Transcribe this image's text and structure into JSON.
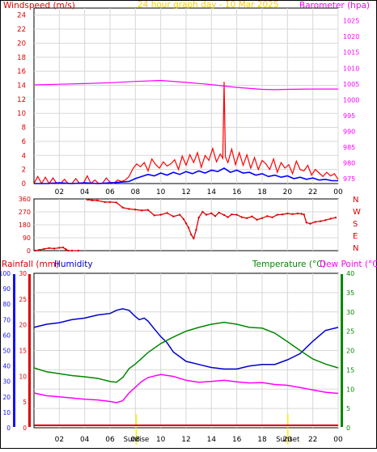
{
  "colors": {
    "red": "#dd0000",
    "wind_gust": "#ff0000",
    "wind_avg": "#0000ff",
    "barometer": "#ff00ff",
    "title": "#ffcc00",
    "humidity": "#0000cc",
    "temperature": "#008800",
    "dewpoint": "#ff00ff",
    "grid": "#d8d8d8",
    "frame": "#000000",
    "sun_marker": "#ffee00"
  },
  "chart_data": [
    {
      "id": "wind_baro",
      "type": "line",
      "title": "24 hour graph day - 10 Mar 2025",
      "left_label": "Windspeed (m/s)",
      "right_label": "Barometer (hpa)",
      "x_ticks": [
        "02",
        "04",
        "06",
        "08",
        "10",
        "12",
        "14",
        "16",
        "18",
        "20",
        "22",
        "00"
      ],
      "xlim": [
        0,
        24
      ],
      "ylim_left": [
        0,
        25
      ],
      "y_ticks_left": [
        0,
        2,
        4,
        6,
        8,
        10,
        12,
        14,
        16,
        18,
        20,
        22,
        24
      ],
      "ylim_right": [
        973.5,
        1029
      ],
      "y_ticks_right": [
        975,
        980,
        985,
        990,
        995,
        1000,
        1005,
        1010,
        1015,
        1020,
        1025
      ],
      "series": [
        {
          "key": "gust",
          "axis": "left",
          "x": [
            0,
            0.3,
            0.6,
            0.9,
            1.2,
            1.5,
            1.8,
            2.1,
            2.4,
            2.7,
            3.0,
            3.3,
            3.6,
            3.9,
            4.2,
            4.5,
            4.8,
            5.1,
            5.4,
            5.7,
            6.0,
            6.3,
            6.6,
            6.9,
            7.2,
            7.5,
            7.8,
            8.1,
            8.4,
            8.7,
            9.0,
            9.3,
            9.6,
            9.9,
            10.2,
            10.5,
            10.8,
            11.1,
            11.4,
            11.7,
            12.0,
            12.3,
            12.6,
            12.9,
            13.2,
            13.5,
            13.8,
            14.1,
            14.4,
            14.7,
            14.9,
            15.0,
            15.1,
            15.3,
            15.6,
            15.9,
            16.2,
            16.5,
            16.8,
            17.1,
            17.4,
            17.7,
            18.0,
            18.3,
            18.6,
            18.9,
            19.2,
            19.5,
            19.8,
            20.1,
            20.4,
            20.7,
            21.0,
            21.3,
            21.6,
            21.9,
            22.2,
            22.5,
            22.8,
            23.1,
            23.4,
            23.7,
            24.0
          ],
          "y": [
            0,
            1.0,
            0,
            0.9,
            0,
            0.8,
            0,
            0,
            0.6,
            0,
            0,
            0.7,
            0,
            0,
            1.1,
            0,
            0.5,
            0,
            0,
            0.8,
            0.2,
            0,
            0.5,
            0.3,
            0.5,
            1.0,
            2.1,
            2.8,
            2.4,
            3.0,
            1.8,
            3.5,
            2.7,
            2.2,
            3.1,
            2.5,
            2.8,
            3.4,
            2.0,
            3.9,
            2.6,
            4.1,
            3.0,
            4.4,
            2.3,
            4.0,
            3.3,
            5.0,
            3.1,
            4.2,
            3.6,
            14.5,
            3.8,
            3.0,
            4.9,
            2.7,
            4.4,
            2.6,
            4.1,
            2.2,
            3.7,
            2.0,
            3.3,
            2.8,
            2.0,
            3.5,
            1.6,
            3.0,
            2.2,
            2.7,
            1.4,
            3.2,
            2.0,
            1.8,
            2.6,
            1.2,
            2.0,
            1.5,
            1.0,
            1.6,
            1.1,
            1.4,
            0.6
          ]
        },
        {
          "key": "avg",
          "axis": "left",
          "x": [
            0,
            1,
            2,
            3,
            4,
            5,
            6,
            6.8,
            7.5,
            8.0,
            8.5,
            9.0,
            9.5,
            10.0,
            10.5,
            11.0,
            11.5,
            12.0,
            12.5,
            13.0,
            13.5,
            14.0,
            14.5,
            15.0,
            15.5,
            16.0,
            16.5,
            17.0,
            17.5,
            18.0,
            18.5,
            19.0,
            19.5,
            20.0,
            20.5,
            21.0,
            21.5,
            22.0,
            22.5,
            23.0,
            23.5,
            24.0
          ],
          "y": [
            0,
            0,
            0.1,
            0,
            0.1,
            0,
            0.1,
            0.2,
            0.3,
            0.7,
            1.0,
            1.3,
            1.1,
            1.5,
            1.2,
            1.6,
            1.3,
            1.7,
            1.4,
            1.8,
            1.5,
            1.9,
            1.7,
            2.2,
            1.6,
            1.9,
            1.5,
            1.6,
            1.2,
            1.4,
            1.0,
            1.2,
            0.9,
            1.1,
            0.7,
            0.9,
            0.6,
            0.8,
            0.5,
            0.6,
            0.4,
            0.4
          ]
        },
        {
          "key": "baro",
          "axis": "right",
          "x": [
            0,
            2,
            4,
            6,
            8,
            10,
            12,
            14,
            16,
            18,
            19,
            20,
            22,
            24
          ],
          "y": [
            1004.7,
            1004.9,
            1005.1,
            1005.4,
            1005.8,
            1006.1,
            1005.5,
            1004.8,
            1003.9,
            1003.3,
            1003.2,
            1003.3,
            1003.4,
            1003.4
          ]
        }
      ]
    },
    {
      "id": "wind_dir",
      "type": "scatter",
      "dir_labels": [
        "N",
        "W",
        "S",
        "E",
        "N"
      ],
      "ylim": [
        0,
        360
      ],
      "y_ticks": [
        0,
        90,
        180,
        270,
        360
      ],
      "points": [
        [
          0.1,
          0
        ],
        [
          0.4,
          5
        ],
        [
          0.8,
          12
        ],
        [
          1.2,
          18
        ],
        [
          1.6,
          14
        ],
        [
          2.0,
          20
        ],
        [
          2.3,
          22
        ],
        [
          2.5,
          10
        ],
        [
          2.7,
          0
        ],
        [
          3.0,
          0
        ],
        [
          3.5,
          0
        ],
        [
          4.2,
          355
        ],
        [
          4.6,
          350
        ],
        [
          5.0,
          349
        ],
        [
          5.6,
          338
        ],
        [
          6.0,
          338
        ],
        [
          6.5,
          335
        ],
        [
          7.0,
          300
        ],
        [
          7.5,
          290
        ],
        [
          8.0,
          286
        ],
        [
          8.5,
          280
        ],
        [
          9.0,
          283
        ],
        [
          9.5,
          245
        ],
        [
          10.0,
          250
        ],
        [
          10.5,
          262
        ],
        [
          11.0,
          238
        ],
        [
          11.5,
          250
        ],
        [
          11.8,
          220
        ],
        [
          12.0,
          190
        ],
        [
          12.2,
          160
        ],
        [
          12.4,
          112
        ],
        [
          12.6,
          85
        ],
        [
          12.8,
          145
        ],
        [
          13.0,
          230
        ],
        [
          13.3,
          270
        ],
        [
          13.6,
          250
        ],
        [
          14.0,
          260
        ],
        [
          14.3,
          240
        ],
        [
          14.6,
          265
        ],
        [
          15.0,
          248
        ],
        [
          15.3,
          233
        ],
        [
          15.6,
          252
        ],
        [
          16.0,
          250
        ],
        [
          16.4,
          233
        ],
        [
          16.8,
          226
        ],
        [
          17.2,
          238
        ],
        [
          17.6,
          215
        ],
        [
          18.0,
          226
        ],
        [
          18.4,
          240
        ],
        [
          18.8,
          232
        ],
        [
          19.2,
          250
        ],
        [
          19.6,
          252
        ],
        [
          20.0,
          258
        ],
        [
          20.4,
          254
        ],
        [
          20.8,
          258
        ],
        [
          21.1,
          256
        ],
        [
          21.3,
          252
        ],
        [
          21.5,
          195
        ],
        [
          21.8,
          188
        ],
        [
          22.2,
          200
        ],
        [
          22.6,
          205
        ],
        [
          23.0,
          212
        ],
        [
          23.4,
          222
        ],
        [
          23.8,
          230
        ]
      ]
    },
    {
      "id": "rain_temp",
      "type": "line",
      "left_label_rain": "Rainfall (mm)",
      "left_label_hum": "Humidity",
      "right_label_temp": "Temperature (°C)",
      "right_label_dew": "Dew Point (°C)",
      "x_ticks": [
        "02",
        "04",
        "06",
        "08",
        "10",
        "12",
        "14",
        "16",
        "18",
        "20",
        "22",
        "00"
      ],
      "sun_labels": [
        "Sunrise",
        "Sunset"
      ],
      "sun_times": [
        8.07,
        20.03
      ],
      "xlim": [
        0,
        24
      ],
      "hum_ticks": [
        0,
        10,
        20,
        30,
        40,
        50,
        60,
        70,
        80,
        90,
        100
      ],
      "rain_ticks": [
        0,
        5,
        10,
        15,
        20,
        25,
        30
      ],
      "temp_ticks": [
        0,
        5,
        10,
        15,
        20,
        25,
        30,
        35,
        40
      ],
      "ylim_temp": [
        0,
        40
      ],
      "series": [
        {
          "key": "humidity",
          "x": [
            0,
            1,
            2,
            3,
            4,
            5,
            6,
            6.5,
            7.0,
            7.5,
            8.0,
            8.3,
            8.7,
            9.0,
            9.5,
            10.0,
            10.5,
            11.0,
            11.5,
            12.0,
            13.0,
            14.0,
            15.0,
            16.0,
            17.0,
            18.0,
            19.0,
            20.0,
            21.0,
            22.0,
            23.0,
            24.0
          ],
          "y": [
            65,
            67,
            68,
            70,
            71,
            73,
            74,
            76,
            77,
            76,
            72,
            70,
            71,
            69,
            64,
            59,
            55,
            49,
            46,
            43,
            41,
            39,
            38,
            38,
            40,
            41,
            41,
            44,
            48,
            56,
            63,
            65
          ]
        },
        {
          "key": "temperature",
          "x": [
            0,
            1,
            2,
            3,
            4,
            5,
            6,
            6.5,
            7.0,
            7.5,
            8.0,
            8.5,
            9.0,
            10.0,
            11.0,
            12.0,
            13.0,
            14.0,
            15.0,
            16.0,
            17.0,
            18.0,
            19.0,
            20.0,
            21.0,
            22.0,
            23.0,
            24.0
          ],
          "y": [
            15.5,
            14.5,
            14.0,
            13.5,
            13.2,
            12.8,
            12.0,
            11.8,
            13.0,
            15.3,
            16.5,
            18.0,
            19.5,
            21.8,
            23.5,
            25.0,
            26.0,
            26.8,
            27.3,
            26.8,
            26.0,
            25.8,
            24.5,
            22.3,
            20.0,
            17.8,
            16.5,
            15.5
          ]
        },
        {
          "key": "dewpoint",
          "x": [
            0,
            1,
            2,
            3,
            4,
            5,
            6,
            6.5,
            7.0,
            7.5,
            8.0,
            8.5,
            9.0,
            10.0,
            11.0,
            12.0,
            13.0,
            14.0,
            15.0,
            16.0,
            17.0,
            18.0,
            19.0,
            20.0,
            21.0,
            22.0,
            23.0,
            24.0
          ],
          "y": [
            9.0,
            8.3,
            8.0,
            7.7,
            7.4,
            7.2,
            6.8,
            6.5,
            7.0,
            9.0,
            10.5,
            12.0,
            13.0,
            13.8,
            13.3,
            12.3,
            11.8,
            12.0,
            12.3,
            11.9,
            11.6,
            11.7,
            11.2,
            11.0,
            10.4,
            9.8,
            9.2,
            8.9
          ]
        },
        {
          "key": "rainfall",
          "x": [
            0,
            24
          ],
          "y": [
            0,
            0
          ]
        }
      ]
    }
  ]
}
